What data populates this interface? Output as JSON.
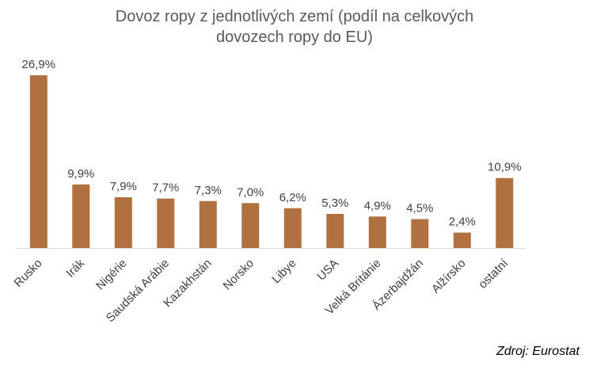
{
  "chart_data": {
    "type": "bar",
    "title_lines": [
      "Dovoz ropy z jednotlivých zemí (podíl na celkových",
      "dovozech ropy do EU)"
    ],
    "categories": [
      "Rusko",
      "Irák",
      "Nigérie",
      "Saudská Arábie",
      "Kazakhstán",
      "Norsko",
      "Libye",
      "USA",
      "Velká Británie",
      "Ázerbajdžán",
      "Alžírsko",
      "ostatní"
    ],
    "values": [
      26.9,
      9.9,
      7.9,
      7.7,
      7.3,
      7.0,
      6.2,
      5.3,
      4.9,
      4.5,
      2.4,
      10.9
    ],
    "data_labels": [
      "26,9%",
      "9,9%",
      "7,9%",
      "7,7%",
      "7,3%",
      "7,0%",
      "6,2%",
      "5,3%",
      "4,9%",
      "4,5%",
      "2,4%",
      "10,9%"
    ],
    "xlabel": "",
    "ylabel": "",
    "ylim": [
      0,
      27
    ],
    "grid": false,
    "legend": false,
    "bar_color": "#B0703F",
    "axis_color": "#D9D9D9",
    "label_color": "#404040",
    "source": "Zdroj: Eurostat"
  }
}
